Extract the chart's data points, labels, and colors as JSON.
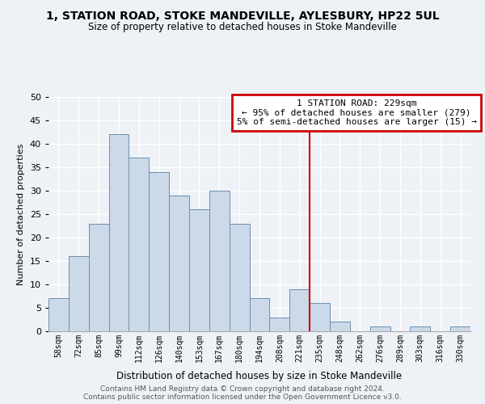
{
  "title": "1, STATION ROAD, STOKE MANDEVILLE, AYLESBURY, HP22 5UL",
  "subtitle": "Size of property relative to detached houses in Stoke Mandeville",
  "xlabel": "Distribution of detached houses by size in Stoke Mandeville",
  "ylabel": "Number of detached properties",
  "bin_labels": [
    "58sqm",
    "72sqm",
    "85sqm",
    "99sqm",
    "112sqm",
    "126sqm",
    "140sqm",
    "153sqm",
    "167sqm",
    "180sqm",
    "194sqm",
    "208sqm",
    "221sqm",
    "235sqm",
    "248sqm",
    "262sqm",
    "276sqm",
    "289sqm",
    "303sqm",
    "316sqm",
    "330sqm"
  ],
  "bar_heights": [
    7,
    16,
    23,
    42,
    37,
    34,
    29,
    26,
    30,
    23,
    7,
    3,
    9,
    6,
    2,
    0,
    1,
    0,
    1,
    0,
    1
  ],
  "bar_color": "#ccd9e8",
  "bar_edge_color": "#6a8faf",
  "vline_x_index": 13,
  "vline_color": "#cc0000",
  "annotation_title": "1 STATION ROAD: 229sqm",
  "annotation_line1": "← 95% of detached houses are smaller (279)",
  "annotation_line2": "5% of semi-detached houses are larger (15) →",
  "annotation_box_edge": "#cc0000",
  "ylim": [
    0,
    50
  ],
  "yticks": [
    0,
    5,
    10,
    15,
    20,
    25,
    30,
    35,
    40,
    45,
    50
  ],
  "footer_line1": "Contains HM Land Registry data © Crown copyright and database right 2024.",
  "footer_line2": "Contains public sector information licensed under the Open Government Licence v3.0.",
  "bg_color": "#eef2f7",
  "plot_bg_color": "#eef2f7",
  "grid_color": "#ffffff"
}
